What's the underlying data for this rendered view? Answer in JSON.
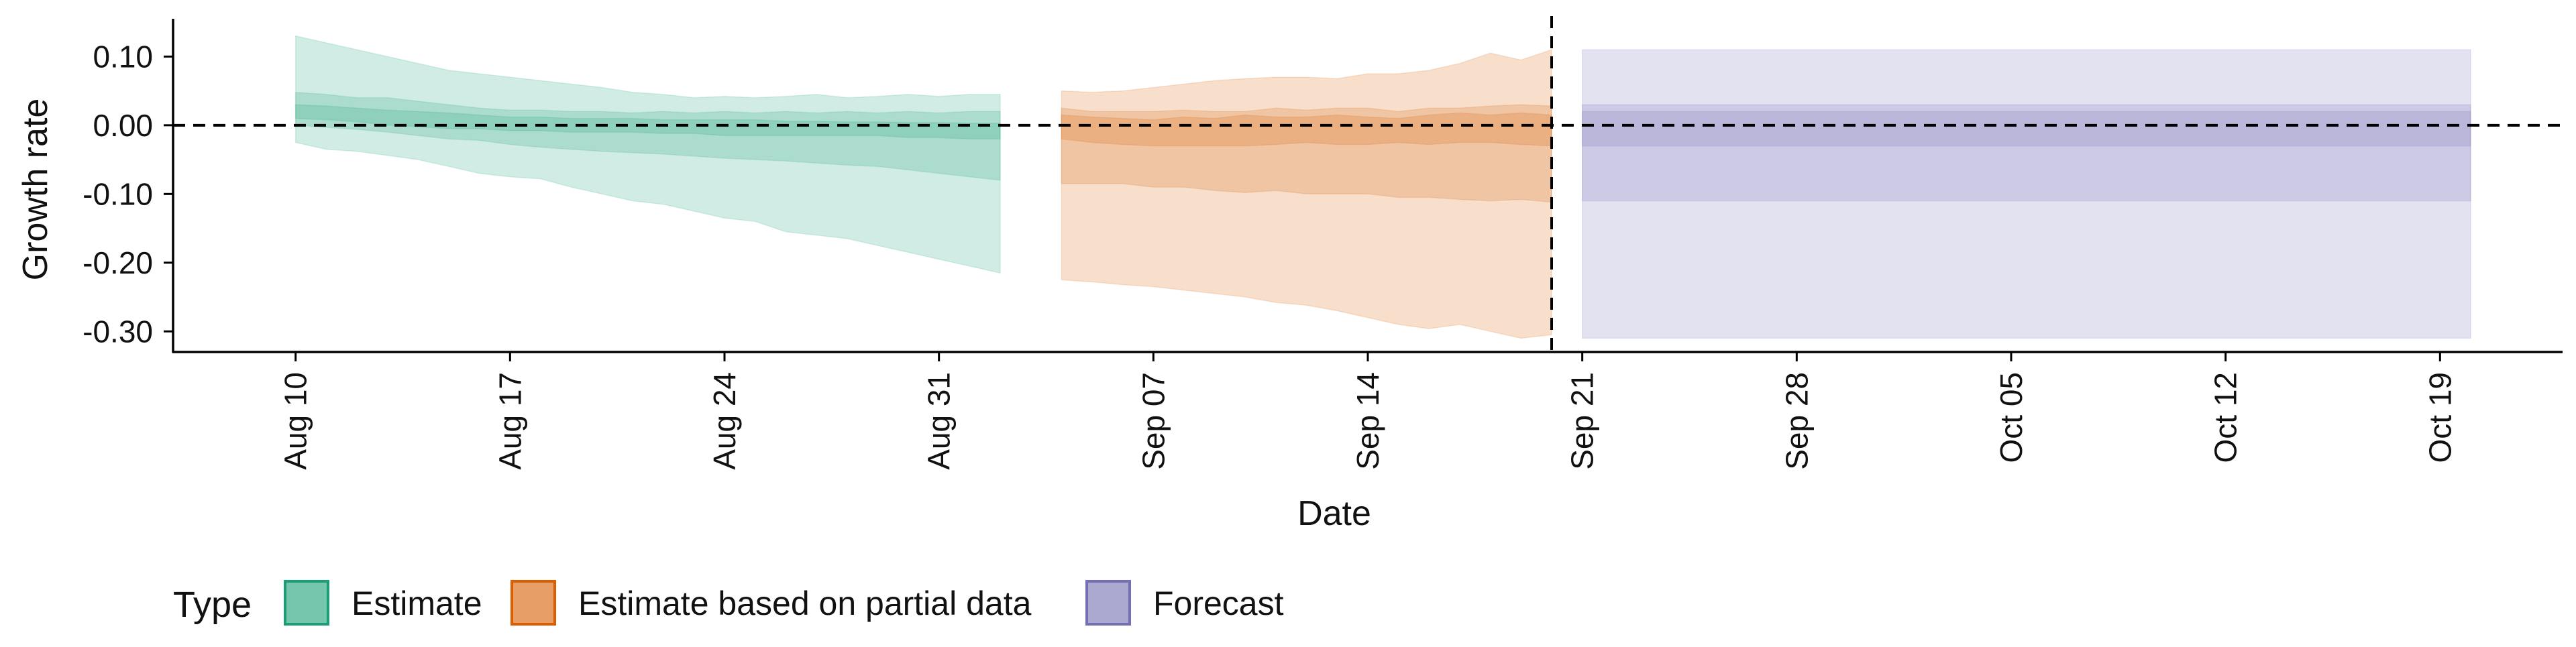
{
  "chart_data": {
    "type": "area",
    "title": "",
    "xlabel": "Date",
    "ylabel": "Growth rate",
    "x_ticks": [
      "Aug 10",
      "Aug 17",
      "Aug 24",
      "Aug 31",
      "Sep 07",
      "Sep 14",
      "Sep 21",
      "Sep 28",
      "Oct 05",
      "Oct 12",
      "Oct 19"
    ],
    "y_ticks": [
      "0.10",
      "0.00",
      "-0.10",
      "-0.20",
      "-0.30"
    ],
    "ylim": [
      -0.33,
      0.155
    ],
    "xlim": [
      "2020-08-06",
      "2020-10-23"
    ],
    "reference_line_y": 0.0,
    "reference_line_x": "2020-09-20",
    "grid": false,
    "legend": {
      "title": "Type",
      "position": "bottom-left",
      "items": [
        {
          "label": "Estimate",
          "color": "#1b9e77"
        },
        {
          "label": "Estimate based on partial data",
          "color": "#d95f02"
        },
        {
          "label": "Forecast",
          "color": "#7570b3"
        }
      ]
    },
    "series": [
      {
        "name": "Estimate",
        "color": "#1b9e77",
        "x": [
          "2020-08-10",
          "2020-08-11",
          "2020-08-12",
          "2020-08-13",
          "2020-08-14",
          "2020-08-15",
          "2020-08-16",
          "2020-08-17",
          "2020-08-18",
          "2020-08-19",
          "2020-08-20",
          "2020-08-21",
          "2020-08-22",
          "2020-08-23",
          "2020-08-24",
          "2020-08-25",
          "2020-08-26",
          "2020-08-27",
          "2020-08-28",
          "2020-08-29",
          "2020-08-30",
          "2020-08-31",
          "2020-09-01",
          "2020-09-02"
        ],
        "lower_90": [
          -0.025,
          -0.035,
          -0.038,
          -0.044,
          -0.05,
          -0.06,
          -0.07,
          -0.075,
          -0.078,
          -0.09,
          -0.1,
          -0.11,
          -0.115,
          -0.125,
          -0.135,
          -0.14,
          -0.155,
          -0.16,
          -0.165,
          -0.175,
          -0.185,
          -0.195,
          -0.205,
          -0.215
        ],
        "upper_90": [
          0.13,
          0.12,
          0.11,
          0.1,
          0.09,
          0.08,
          0.075,
          0.07,
          0.065,
          0.06,
          0.055,
          0.048,
          0.045,
          0.04,
          0.042,
          0.04,
          0.042,
          0.045,
          0.04,
          0.042,
          0.045,
          0.042,
          0.045,
          0.045
        ],
        "lower_50": [
          0.0,
          -0.003,
          -0.006,
          -0.01,
          -0.015,
          -0.02,
          -0.022,
          -0.028,
          -0.032,
          -0.035,
          -0.038,
          -0.04,
          -0.042,
          -0.045,
          -0.048,
          -0.05,
          -0.052,
          -0.055,
          -0.058,
          -0.06,
          -0.065,
          -0.07,
          -0.075,
          -0.08
        ],
        "upper_50": [
          0.048,
          0.045,
          0.04,
          0.04,
          0.035,
          0.03,
          0.025,
          0.022,
          0.022,
          0.02,
          0.02,
          0.018,
          0.02,
          0.018,
          0.02,
          0.018,
          0.02,
          0.018,
          0.02,
          0.018,
          0.02,
          0.018,
          0.02,
          0.02
        ],
        "lower_20": [
          0.01,
          0.008,
          0.005,
          0.0,
          -0.002,
          -0.005,
          -0.005,
          -0.008,
          -0.008,
          -0.01,
          -0.01,
          -0.01,
          -0.012,
          -0.012,
          -0.015,
          -0.015,
          -0.015,
          -0.015,
          -0.015,
          -0.015,
          -0.018,
          -0.018,
          -0.02,
          -0.02
        ],
        "upper_20": [
          0.03,
          0.028,
          0.025,
          0.022,
          0.02,
          0.018,
          0.015,
          0.012,
          0.012,
          0.01,
          0.01,
          0.01,
          0.008,
          0.008,
          0.008,
          0.008,
          0.006,
          0.006,
          0.005,
          0.005,
          0.004,
          0.004,
          0.003,
          0.003
        ]
      },
      {
        "name": "Estimate based on partial data",
        "color": "#d95f02",
        "x": [
          "2020-09-04",
          "2020-09-05",
          "2020-09-06",
          "2020-09-07",
          "2020-09-08",
          "2020-09-09",
          "2020-09-10",
          "2020-09-11",
          "2020-09-12",
          "2020-09-13",
          "2020-09-14",
          "2020-09-15",
          "2020-09-16",
          "2020-09-17",
          "2020-09-18",
          "2020-09-19",
          "2020-09-20"
        ],
        "lower_90": [
          -0.225,
          -0.228,
          -0.232,
          -0.235,
          -0.24,
          -0.245,
          -0.25,
          -0.258,
          -0.262,
          -0.27,
          -0.28,
          -0.29,
          -0.296,
          -0.29,
          -0.3,
          -0.31,
          -0.305
        ],
        "upper_90": [
          0.05,
          0.048,
          0.05,
          0.055,
          0.06,
          0.065,
          0.068,
          0.07,
          0.07,
          0.068,
          0.075,
          0.075,
          0.08,
          0.09,
          0.105,
          0.095,
          0.11
        ],
        "lower_50": [
          -0.085,
          -0.085,
          -0.085,
          -0.09,
          -0.09,
          -0.095,
          -0.098,
          -0.095,
          -0.1,
          -0.1,
          -0.1,
          -0.105,
          -0.105,
          -0.108,
          -0.11,
          -0.108,
          -0.112
        ],
        "upper_50": [
          0.025,
          0.02,
          0.02,
          0.02,
          0.022,
          0.02,
          0.02,
          0.025,
          0.022,
          0.025,
          0.025,
          0.02,
          0.025,
          0.025,
          0.028,
          0.03,
          0.028
        ],
        "lower_20": [
          -0.02,
          -0.025,
          -0.028,
          -0.03,
          -0.03,
          -0.03,
          -0.03,
          -0.028,
          -0.025,
          -0.028,
          -0.028,
          -0.025,
          -0.028,
          -0.025,
          -0.025,
          -0.028,
          -0.03
        ],
        "upper_20": [
          0.015,
          0.012,
          0.01,
          0.008,
          0.012,
          0.01,
          0.015,
          0.012,
          0.012,
          0.015,
          0.012,
          0.01,
          0.015,
          0.018,
          0.015,
          0.018,
          0.015
        ]
      },
      {
        "name": "Forecast",
        "color": "#7570b3",
        "x": [
          "2020-09-21",
          "2020-10-20"
        ],
        "lower_90": [
          -0.31,
          -0.31
        ],
        "upper_90": [
          0.11,
          0.11
        ],
        "lower_50": [
          -0.11,
          -0.11
        ],
        "upper_50": [
          0.03,
          0.03
        ],
        "lower_20": [
          -0.03,
          -0.03
        ],
        "upper_20": [
          0.02,
          0.02
        ]
      }
    ]
  }
}
